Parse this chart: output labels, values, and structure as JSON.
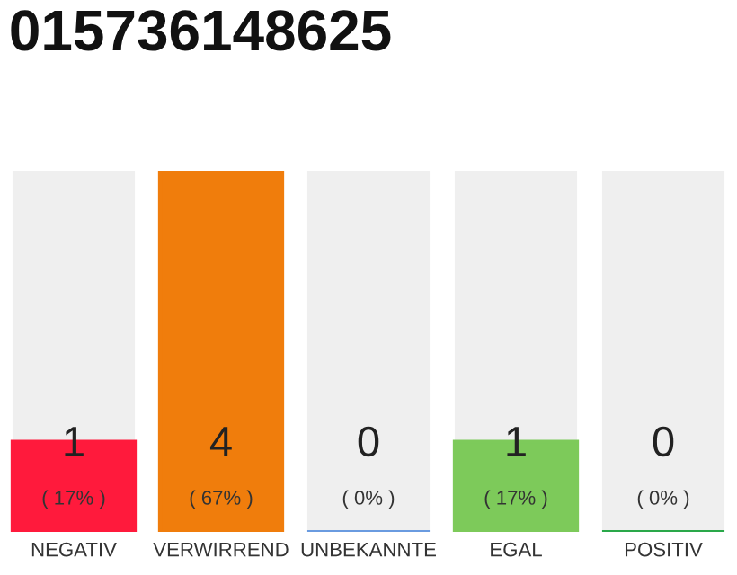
{
  "chart_data": {
    "type": "bar",
    "title": "015736148625",
    "categories": [
      "NEGATIV",
      "VERWIRREND",
      "UNBEKANNTE",
      "EGAL",
      "POSITIV"
    ],
    "values": [
      1,
      4,
      0,
      1,
      0
    ],
    "colors": [
      "#ff1a3c",
      "#f07d0c",
      "#6a9be0",
      "#7dca5a",
      "#2aa84a"
    ],
    "value_labels": [
      "1\n( 17% )",
      "4\n( 67% )",
      "0\n( 0% )",
      "1\n( 17% )",
      "0\n( 0% )"
    ],
    "relative": false,
    "ylim": [
      0,
      4
    ],
    "tick_labels": "x",
    "grid": false,
    "legend": false
  }
}
